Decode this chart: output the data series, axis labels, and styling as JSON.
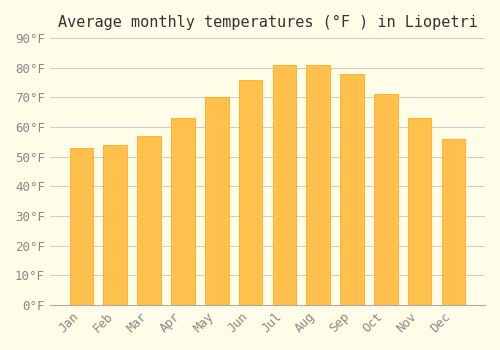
{
  "title": "Average monthly temperatures (°F ) in Liopetri",
  "months": [
    "Jan",
    "Feb",
    "Mar",
    "Apr",
    "May",
    "Jun",
    "Jul",
    "Aug",
    "Sep",
    "Oct",
    "Nov",
    "Dec"
  ],
  "values": [
    53,
    54,
    57,
    63,
    70,
    76,
    81,
    81,
    78,
    71,
    63,
    56
  ],
  "bar_color": "#FFA500",
  "bar_edge_color": "#FF8C00",
  "background_color": "#FFFDE7",
  "grid_color": "#CCCCCC",
  "ylim": [
    0,
    90
  ],
  "yticks": [
    0,
    10,
    20,
    30,
    40,
    50,
    60,
    70,
    80,
    90
  ],
  "ytick_labels": [
    "0°F",
    "10°F",
    "20°F",
    "30°F",
    "40°F",
    "50°F",
    "60°F",
    "70°F",
    "80°F",
    "90°F"
  ],
  "title_fontsize": 11,
  "tick_fontsize": 9,
  "font_family": "monospace"
}
